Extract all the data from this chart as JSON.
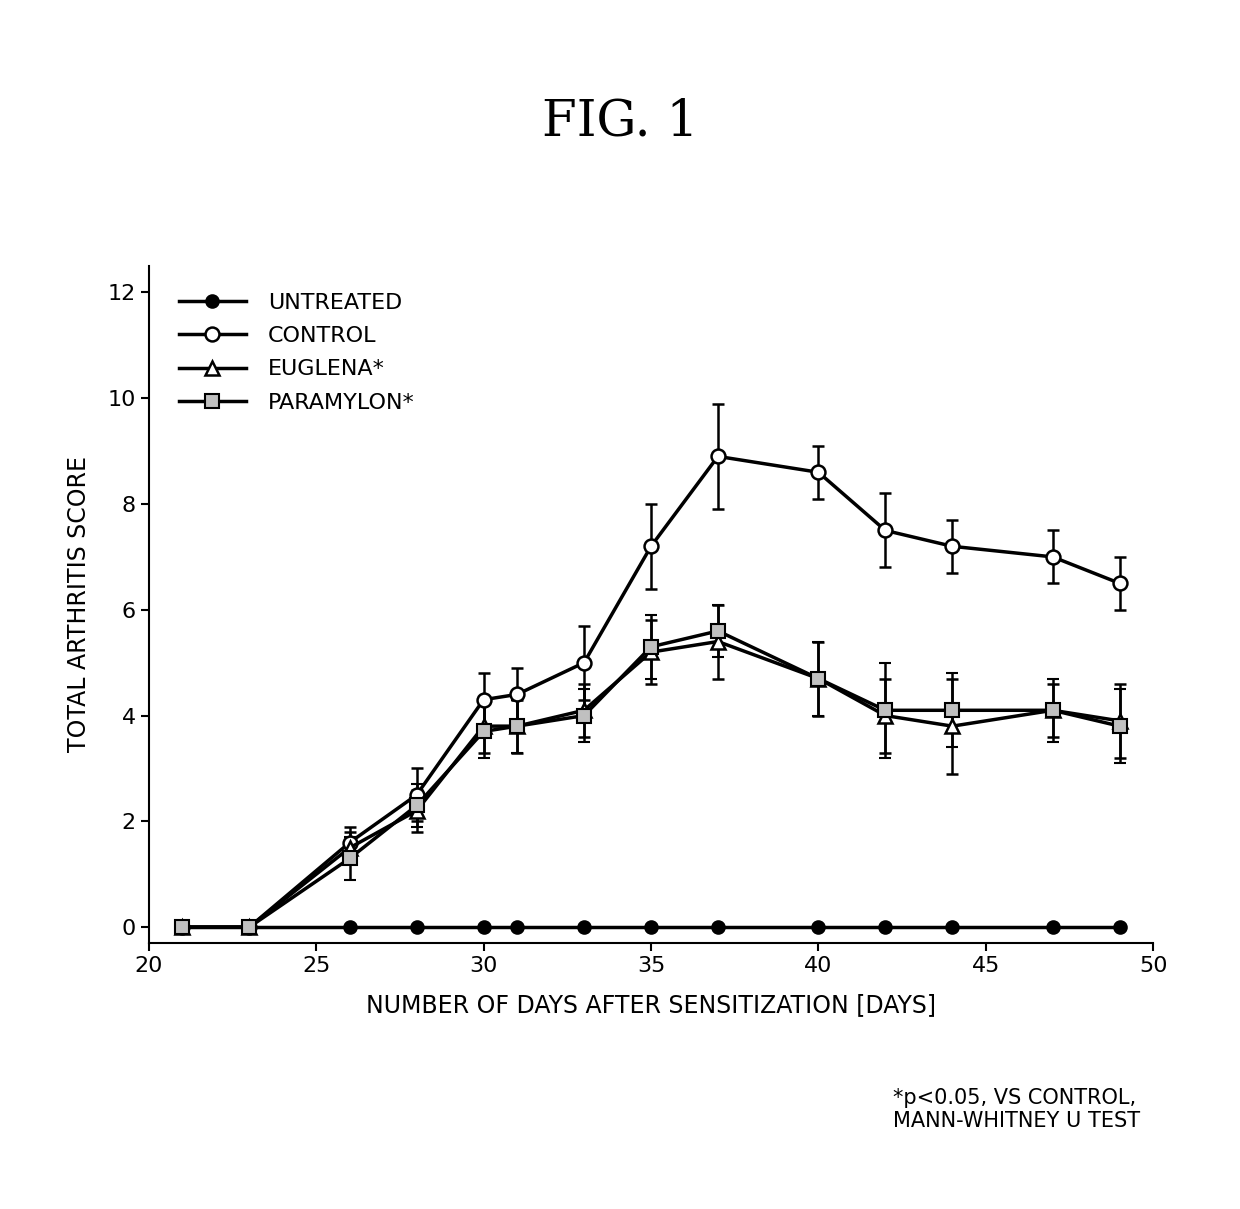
{
  "title": "FIG. 1",
  "xlabel": "NUMBER OF DAYS AFTER SENSITIZATION [DAYS]",
  "ylabel": "TOTAL ARTHRITIS SCORE",
  "xlim": [
    20,
    50
  ],
  "ylim": [
    -0.3,
    12.5
  ],
  "yticks": [
    0.0,
    2.0,
    4.0,
    6.0,
    8.0,
    10.0,
    12.0
  ],
  "xticks": [
    20,
    25,
    30,
    35,
    40,
    45,
    50
  ],
  "annotation": "*p<0.05, VS CONTROL,\nMANN-WHITNEY U TEST",
  "series": {
    "untreated": {
      "label": "UNTREATED",
      "x": [
        21,
        23,
        26,
        28,
        30,
        31,
        33,
        35,
        37,
        40,
        42,
        44,
        47,
        49
      ],
      "y": [
        0.0,
        0.0,
        0.0,
        0.0,
        0.0,
        0.0,
        0.0,
        0.0,
        0.0,
        0.0,
        0.0,
        0.0,
        0.0,
        0.0
      ],
      "yerr": [
        0.0,
        0.0,
        0.0,
        0.0,
        0.0,
        0.0,
        0.0,
        0.0,
        0.0,
        0.0,
        0.0,
        0.0,
        0.0,
        0.0
      ],
      "marker": "o",
      "markersize": 9,
      "linewidth": 2.5,
      "mfc": "black",
      "mec": "black",
      "mew": 1.5
    },
    "control": {
      "label": "CONTROL",
      "x": [
        21,
        23,
        26,
        28,
        30,
        31,
        33,
        35,
        37,
        40,
        42,
        44,
        47,
        49
      ],
      "y": [
        0.0,
        0.0,
        1.6,
        2.5,
        4.3,
        4.4,
        5.0,
        7.2,
        8.9,
        8.6,
        7.5,
        7.2,
        7.0,
        6.5
      ],
      "yerr": [
        0.0,
        0.0,
        0.3,
        0.5,
        0.5,
        0.5,
        0.7,
        0.8,
        1.0,
        0.5,
        0.7,
        0.5,
        0.5,
        0.5
      ],
      "marker": "o",
      "markersize": 10,
      "linewidth": 2.5,
      "mfc": "white",
      "mec": "black",
      "mew": 1.8
    },
    "euglena": {
      "label": "EUGLENA*",
      "x": [
        21,
        23,
        26,
        28,
        30,
        31,
        33,
        35,
        37,
        40,
        42,
        44,
        47,
        49
      ],
      "y": [
        0.0,
        0.0,
        1.5,
        2.2,
        3.8,
        3.8,
        4.1,
        5.2,
        5.4,
        4.7,
        4.0,
        3.8,
        4.1,
        3.9
      ],
      "yerr": [
        0.0,
        0.0,
        0.3,
        0.4,
        0.5,
        0.5,
        0.5,
        0.6,
        0.7,
        0.7,
        0.7,
        0.9,
        0.5,
        0.7
      ],
      "marker": "^",
      "markersize": 10,
      "linewidth": 2.5,
      "mfc": "white",
      "mec": "black",
      "mew": 1.8
    },
    "paramylon": {
      "label": "PARAMYLON*",
      "x": [
        21,
        23,
        26,
        28,
        30,
        31,
        33,
        35,
        37,
        40,
        42,
        44,
        47,
        49
      ],
      "y": [
        0.0,
        0.0,
        1.3,
        2.3,
        3.7,
        3.8,
        4.0,
        5.3,
        5.6,
        4.7,
        4.1,
        4.1,
        4.1,
        3.8
      ],
      "yerr": [
        0.0,
        0.0,
        0.4,
        0.4,
        0.5,
        0.5,
        0.5,
        0.6,
        0.5,
        0.7,
        0.9,
        0.7,
        0.6,
        0.7
      ],
      "marker": "s",
      "markersize": 10,
      "linewidth": 2.5,
      "mfc": "#c0c0c0",
      "mec": "black",
      "mew": 1.5
    }
  },
  "background_color": "#ffffff",
  "title_fontsize": 36,
  "label_fontsize": 17,
  "tick_fontsize": 16,
  "legend_fontsize": 16,
  "annot_fontsize": 15
}
